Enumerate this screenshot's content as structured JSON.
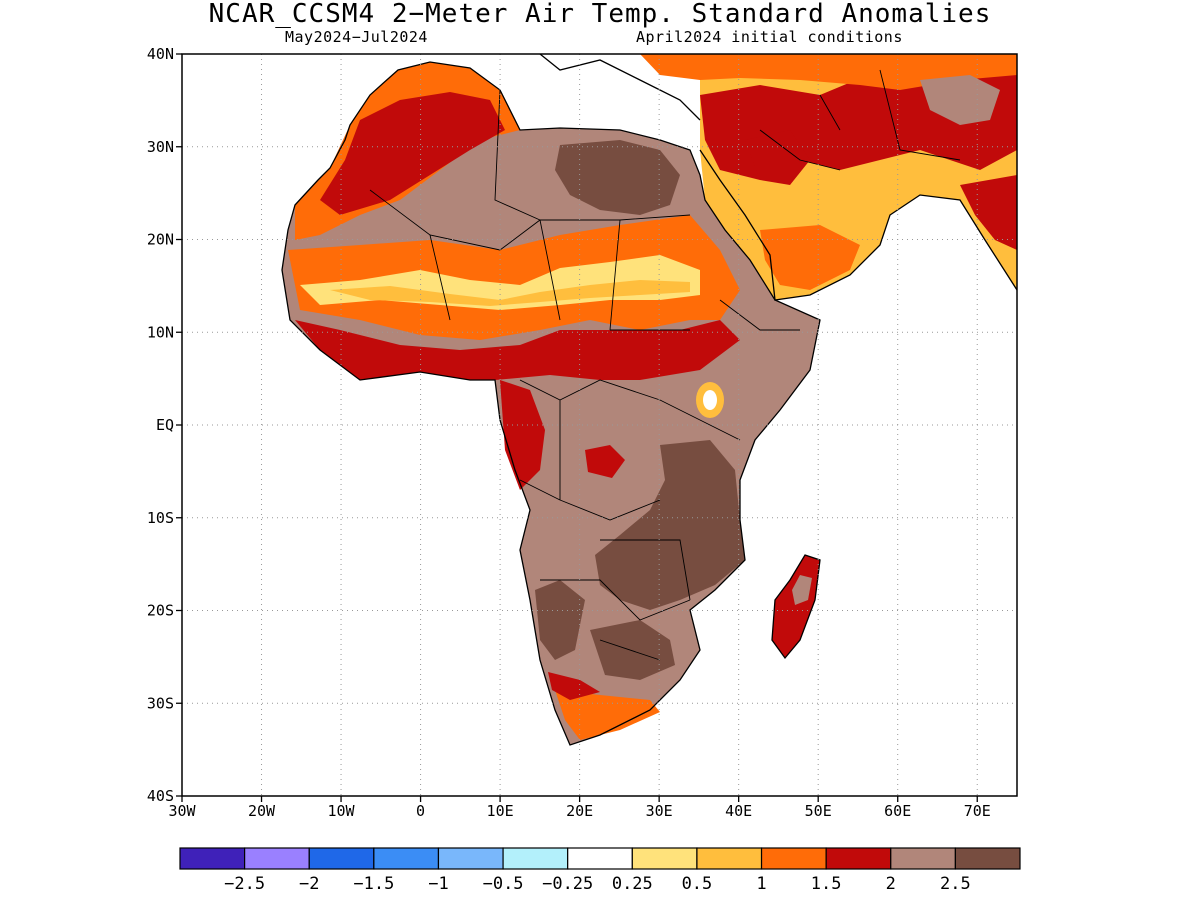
{
  "title": "NCAR_CCSM4 2−Meter Air Temp. Standard Anomalies",
  "subtitle_left": "May2024−Jul2024",
  "subtitle_right": "April2024 initial conditions",
  "map": {
    "lon_range": [
      -30,
      75
    ],
    "lat_range": [
      -40,
      40
    ],
    "lat_ticks": [
      {
        "value": 40,
        "label": "40N"
      },
      {
        "value": 30,
        "label": "30N"
      },
      {
        "value": 20,
        "label": "20N"
      },
      {
        "value": 10,
        "label": "10N"
      },
      {
        "value": 0,
        "label": "EQ"
      },
      {
        "value": -10,
        "label": "10S"
      },
      {
        "value": -20,
        "label": "20S"
      },
      {
        "value": -30,
        "label": "30S"
      },
      {
        "value": -40,
        "label": "40S"
      }
    ],
    "lon_ticks": [
      {
        "value": -30,
        "label": "30W"
      },
      {
        "value": -20,
        "label": "20W"
      },
      {
        "value": -10,
        "label": "10W"
      },
      {
        "value": 0,
        "label": "0"
      },
      {
        "value": 10,
        "label": "10E"
      },
      {
        "value": 20,
        "label": "20E"
      },
      {
        "value": 30,
        "label": "30E"
      },
      {
        "value": 40,
        "label": "40E"
      },
      {
        "value": 50,
        "label": "50E"
      },
      {
        "value": 60,
        "label": "60E"
      },
      {
        "value": 70,
        "label": "70E"
      }
    ],
    "grid": "dotted"
  },
  "colorbar": {
    "colors": [
      "#3f21b9",
      "#9a80ff",
      "#1f68e8",
      "#3b8df5",
      "#79b7fb",
      "#b3f0fb",
      "#ffffff",
      "#ffe27b",
      "#ffbe3d",
      "#ff6c08",
      "#c10a0a",
      "#b1867a",
      "#774d40"
    ],
    "labels": [
      "−2.5",
      "−2",
      "−1.5",
      "−1",
      "−0.5",
      "−0.25",
      "0.25",
      "0.5",
      "1",
      "1.5",
      "2",
      "2.5"
    ]
  },
  "land_color": "#b1867a"
}
